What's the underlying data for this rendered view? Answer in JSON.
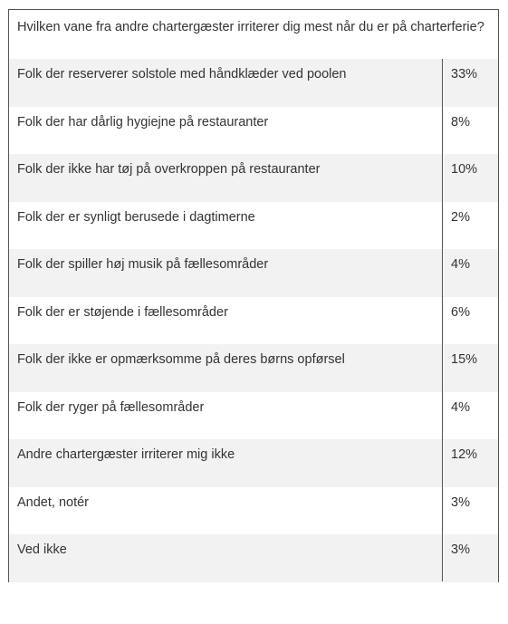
{
  "table": {
    "title": "Hvilken vane fra andre chartergæster irriterer dig mest når du er på charterferie?",
    "rows": [
      [
        "Folk der reserverer solstole med håndklæder ved poolen",
        "33%"
      ],
      [
        "Folk der har dårlig hygiejne på restauranter",
        "8%"
      ],
      [
        "Folk der ikke har tøj på overkroppen på restauranter",
        "10%"
      ],
      [
        "Folk der er synligt berusede i dagtimerne",
        "2%"
      ],
      [
        "Folk der spiller høj musik på fællesområder",
        "4%"
      ],
      [
        "Folk der er støjende i fællesområder",
        "6%"
      ],
      [
        "Folk der ikke er opmærksomme på deres børns opførsel",
        "15%"
      ],
      [
        "Folk der ryger på fællesområder",
        "4%"
      ],
      [
        "Andre chartergæster irriterer mig ikke",
        "12%"
      ],
      [
        "Andet, notér",
        "3%"
      ],
      [
        "Ved ikke",
        "3%"
      ]
    ]
  }
}
